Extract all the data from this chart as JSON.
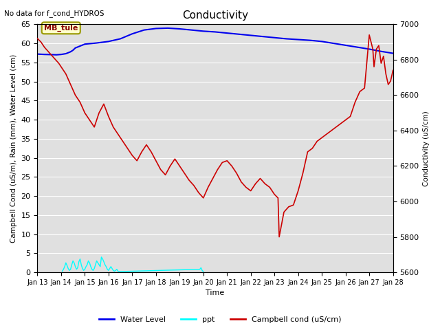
{
  "title": "Conductivity",
  "top_left_text": "No data for f_cond_HYDROS",
  "ylabel_left": "Campbell Cond (uS/m), Rain (mm), Water Level (cm)",
  "ylabel_right": "Conductivity (uS/cm)",
  "xlabel": "Time",
  "ylim_left": [
    0,
    65
  ],
  "ylim_right": [
    5600,
    7000
  ],
  "xtick_labels": [
    "Jan 13",
    "Jan 14",
    "Jan 15",
    "Jan 16",
    "Jan 17",
    "Jan 18",
    "Jan 19",
    "Jan 20",
    "Jan 21",
    "Jan 22",
    "Jan 23",
    "Jan 24",
    "Jan 25",
    "Jan 26",
    "Jan 27",
    "Jan 28"
  ],
  "annotation_text": "MB_tule",
  "background_color": "#e0e0e0",
  "water_level_color": "#0000ee",
  "ppt_color": "#00ffff",
  "campbell_color": "#cc0000",
  "legend_entries": [
    "Water Level",
    "ppt",
    "Campbell cond (uS/cm)"
  ],
  "water_level_data_x": [
    0,
    0.3,
    0.6,
    0.8,
    1.0,
    1.2,
    1.4,
    1.5,
    1.6,
    1.8,
    2.0,
    2.5,
    3.0,
    3.5,
    4.0,
    4.5,
    5.0,
    5.5,
    6.0,
    6.5,
    7.0,
    7.5,
    8.0,
    8.5,
    9.0,
    9.5,
    10.0,
    10.5,
    11.0,
    11.5,
    12.0,
    12.5,
    13.0,
    13.5,
    14.0,
    14.5,
    15.0
  ],
  "water_level_data_y": [
    57.2,
    57.1,
    57.05,
    57.0,
    57.1,
    57.3,
    57.8,
    58.2,
    58.8,
    59.3,
    59.8,
    60.1,
    60.5,
    61.2,
    62.5,
    63.5,
    63.9,
    64.0,
    63.8,
    63.5,
    63.2,
    63.0,
    62.7,
    62.4,
    62.1,
    61.8,
    61.5,
    61.2,
    61.0,
    60.8,
    60.5,
    60.0,
    59.5,
    59.0,
    58.5,
    57.9,
    57.4
  ],
  "ppt_data_x": [
    1.05,
    1.1,
    1.15,
    1.2,
    1.25,
    1.3,
    1.35,
    1.4,
    1.45,
    1.5,
    1.55,
    1.6,
    1.65,
    1.7,
    1.75,
    1.8,
    1.85,
    1.9,
    1.95,
    2.0,
    2.05,
    2.1,
    2.15,
    2.2,
    2.25,
    2.3,
    2.35,
    2.4,
    2.45,
    2.5,
    2.55,
    2.6,
    2.65,
    2.7,
    2.75,
    2.8,
    2.85,
    2.9,
    2.95,
    3.0,
    3.05,
    3.1,
    3.15,
    3.2,
    3.25,
    3.3,
    3.35,
    3.4,
    3.45,
    6.85,
    6.9,
    6.95,
    7.0
  ],
  "ppt_data_y": [
    0.3,
    0.8,
    1.5,
    2.5,
    1.8,
    1.0,
    0.5,
    0.8,
    2.0,
    3.0,
    2.5,
    1.5,
    0.8,
    1.2,
    2.8,
    3.5,
    2.0,
    1.0,
    0.5,
    0.8,
    1.5,
    2.0,
    3.0,
    2.5,
    1.5,
    0.8,
    0.5,
    1.0,
    2.0,
    3.0,
    2.5,
    2.0,
    1.5,
    4.0,
    3.5,
    2.8,
    2.0,
    1.5,
    0.8,
    0.5,
    1.0,
    1.5,
    1.0,
    0.5,
    0.3,
    0.5,
    0.8,
    0.3,
    0.2,
    0.8,
    1.2,
    0.5,
    0.2
  ],
  "campbell_data_x": [
    0,
    0.15,
    0.3,
    0.5,
    0.7,
    0.9,
    1.0,
    1.1,
    1.2,
    1.3,
    1.4,
    1.5,
    1.6,
    1.7,
    1.8,
    1.9,
    2.0,
    2.2,
    2.4,
    2.6,
    2.8,
    3.0,
    3.2,
    3.4,
    3.6,
    3.8,
    4.0,
    4.2,
    4.4,
    4.6,
    4.8,
    5.0,
    5.2,
    5.4,
    5.6,
    5.8,
    6.0,
    6.2,
    6.4,
    6.6,
    6.8,
    7.0,
    7.2,
    7.4,
    7.6,
    7.8,
    8.0,
    8.2,
    8.4,
    8.6,
    8.8,
    9.0,
    9.2,
    9.4,
    9.6,
    9.8,
    10.0,
    10.15,
    10.2,
    10.4,
    10.6,
    10.8,
    11.0,
    11.2,
    11.4,
    11.6,
    11.8,
    12.0,
    12.2,
    12.4,
    12.6,
    12.8,
    13.0,
    13.2,
    13.4,
    13.6,
    13.8,
    14.0,
    14.15,
    14.2,
    14.3,
    14.4,
    14.5,
    14.6,
    14.7,
    14.8,
    14.9,
    15.0
  ],
  "campbell_data_y": [
    6920,
    6900,
    6870,
    6840,
    6810,
    6780,
    6760,
    6740,
    6720,
    6690,
    6660,
    6630,
    6600,
    6580,
    6560,
    6530,
    6500,
    6460,
    6420,
    6500,
    6550,
    6480,
    6420,
    6380,
    6340,
    6300,
    6260,
    6230,
    6280,
    6320,
    6280,
    6230,
    6180,
    6150,
    6200,
    6240,
    6200,
    6160,
    6120,
    6090,
    6050,
    6020,
    6080,
    6130,
    6180,
    6220,
    6230,
    6200,
    6160,
    6110,
    6080,
    6060,
    6100,
    6130,
    6100,
    6080,
    6040,
    6020,
    5800,
    5940,
    5970,
    5980,
    6060,
    6160,
    6280,
    6300,
    6340,
    6360,
    6380,
    6400,
    6420,
    6440,
    6460,
    6480,
    6560,
    6620,
    6640,
    6940,
    6860,
    6760,
    6860,
    6880,
    6780,
    6820,
    6720,
    6660,
    6680,
    6740
  ]
}
